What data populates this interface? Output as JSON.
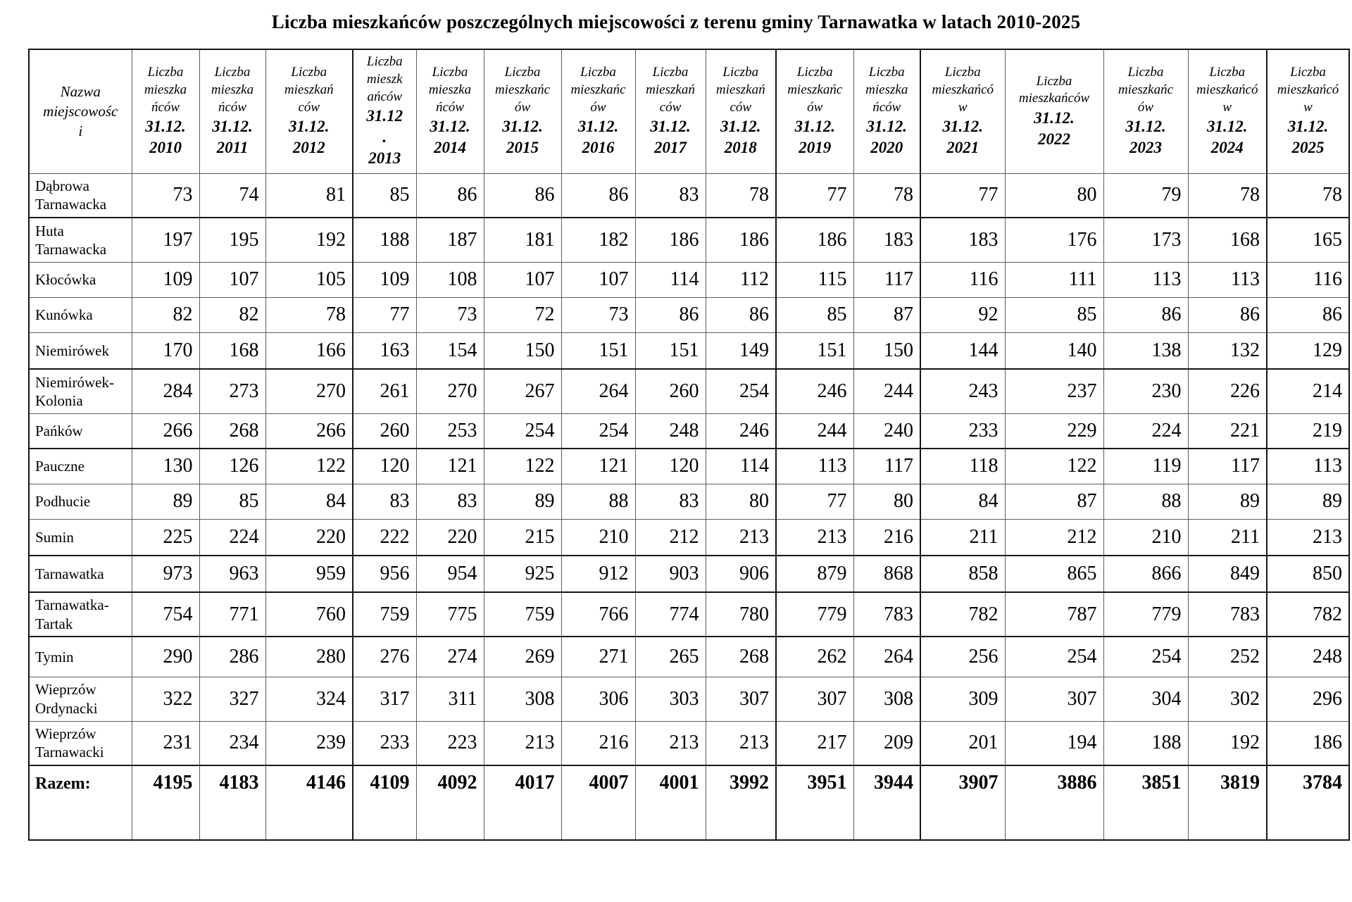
{
  "title": "Liczba mieszkańców poszczególnych miejscowości  z terenu gminy Tarnawatka w latach 2010-2025",
  "table": {
    "name_header": "Nazwa\nmiejscowośc\ni",
    "year_columns": [
      {
        "label": "Liczba\nmieszka\nńców",
        "date": "31.12.",
        "year": "2010"
      },
      {
        "label": "Liczba\nmieszka\nńców",
        "date": "31.12.",
        "year": "2011"
      },
      {
        "label": "Liczba\nmieszkań\nców",
        "date": "31.12.",
        "year": "2012"
      },
      {
        "label": "Liczba\nmieszk\nańców",
        "date": "31.12\n.",
        "year": "2013"
      },
      {
        "label": "Liczba\nmieszka\nńców",
        "date": "31.12.",
        "year": "2014"
      },
      {
        "label": "Liczba\nmieszkańc\nów",
        "date": "31.12.",
        "year": "2015"
      },
      {
        "label": "Liczba\nmieszkańc\nów",
        "date": "31.12.",
        "year": "2016"
      },
      {
        "label": "Liczba\nmieszkań\nców",
        "date": "31.12.",
        "year": "2017"
      },
      {
        "label": "Liczba\nmieszkań\nców",
        "date": "31.12.",
        "year": "2018"
      },
      {
        "label": "Liczba\nmieszkańc\nów",
        "date": "31.12.",
        "year": "2019"
      },
      {
        "label": "Liczba\nmieszka\nńców",
        "date": "31.12.",
        "year": "2020"
      },
      {
        "label": "Liczba\nmieszkańcó\nw",
        "date": "31.12.",
        "year": "2021"
      },
      {
        "label": "Liczba\nmieszkańców",
        "date": "31.12.",
        "year": "2022"
      },
      {
        "label": "Liczba\nmieszkańc\nów",
        "date": "31.12.",
        "year": "2023"
      },
      {
        "label": "Liczba\nmieszkańcó\nw",
        "date": "31.12.",
        "year": "2024"
      },
      {
        "label": "Liczba\nmieszkańcó\nw",
        "date": "31.12.",
        "year": "2025"
      }
    ],
    "rows": [
      {
        "name": "Dąbrowa Tarnawacka",
        "values": [
          73,
          74,
          81,
          85,
          86,
          86,
          86,
          83,
          78,
          77,
          78,
          77,
          80,
          79,
          78,
          78
        ]
      },
      {
        "name": "Huta Tarnawacka",
        "values": [
          197,
          195,
          192,
          188,
          187,
          181,
          182,
          186,
          186,
          186,
          183,
          183,
          176,
          173,
          168,
          165
        ]
      },
      {
        "name": "Kłocówka",
        "values": [
          109,
          107,
          105,
          109,
          108,
          107,
          107,
          114,
          112,
          115,
          117,
          116,
          111,
          113,
          113,
          116
        ]
      },
      {
        "name": "Kunówka",
        "values": [
          82,
          82,
          78,
          77,
          73,
          72,
          73,
          86,
          86,
          85,
          87,
          92,
          85,
          86,
          86,
          86
        ]
      },
      {
        "name": "Niemirówek",
        "values": [
          170,
          168,
          166,
          163,
          154,
          150,
          151,
          151,
          149,
          151,
          150,
          144,
          140,
          138,
          132,
          129
        ]
      },
      {
        "name": "Niemirówek-Kolonia",
        "values": [
          284,
          273,
          270,
          261,
          270,
          267,
          264,
          260,
          254,
          246,
          244,
          243,
          237,
          230,
          226,
          214
        ]
      },
      {
        "name": "Pańków",
        "values": [
          266,
          268,
          266,
          260,
          253,
          254,
          254,
          248,
          246,
          244,
          240,
          233,
          229,
          224,
          221,
          219
        ]
      },
      {
        "name": "Pauczne",
        "values": [
          130,
          126,
          122,
          120,
          121,
          122,
          121,
          120,
          114,
          113,
          117,
          118,
          122,
          119,
          117,
          113
        ]
      },
      {
        "name": "Podhucie",
        "values": [
          89,
          85,
          84,
          83,
          83,
          89,
          88,
          83,
          80,
          77,
          80,
          84,
          87,
          88,
          89,
          89
        ]
      },
      {
        "name": "Sumin",
        "values": [
          225,
          224,
          220,
          222,
          220,
          215,
          210,
          212,
          213,
          213,
          216,
          211,
          212,
          210,
          211,
          213
        ]
      },
      {
        "name": "Tarnawatka",
        "values": [
          973,
          963,
          959,
          956,
          954,
          925,
          912,
          903,
          906,
          879,
          868,
          858,
          865,
          866,
          849,
          850
        ]
      },
      {
        "name": "Tarnawatka-Tartak",
        "values": [
          754,
          771,
          760,
          759,
          775,
          759,
          766,
          774,
          780,
          779,
          783,
          782,
          787,
          779,
          783,
          782
        ]
      },
      {
        "name": "Tymin",
        "values": [
          290,
          286,
          280,
          276,
          274,
          269,
          271,
          265,
          268,
          262,
          264,
          256,
          254,
          254,
          252,
          248
        ]
      },
      {
        "name": "Wieprzów Ordynacki",
        "values": [
          322,
          327,
          324,
          317,
          311,
          308,
          306,
          303,
          307,
          307,
          308,
          309,
          307,
          304,
          302,
          296
        ]
      },
      {
        "name": "Wieprzów Tarnawacki",
        "values": [
          231,
          234,
          239,
          233,
          223,
          213,
          216,
          213,
          213,
          217,
          209,
          201,
          194,
          188,
          192,
          186
        ]
      }
    ],
    "total_row": {
      "label": "Razem:",
      "values": [
        4195,
        4183,
        4146,
        4109,
        4092,
        4017,
        4007,
        4001,
        3992,
        3951,
        3944,
        3907,
        3886,
        3851,
        3819,
        3784
      ]
    }
  }
}
